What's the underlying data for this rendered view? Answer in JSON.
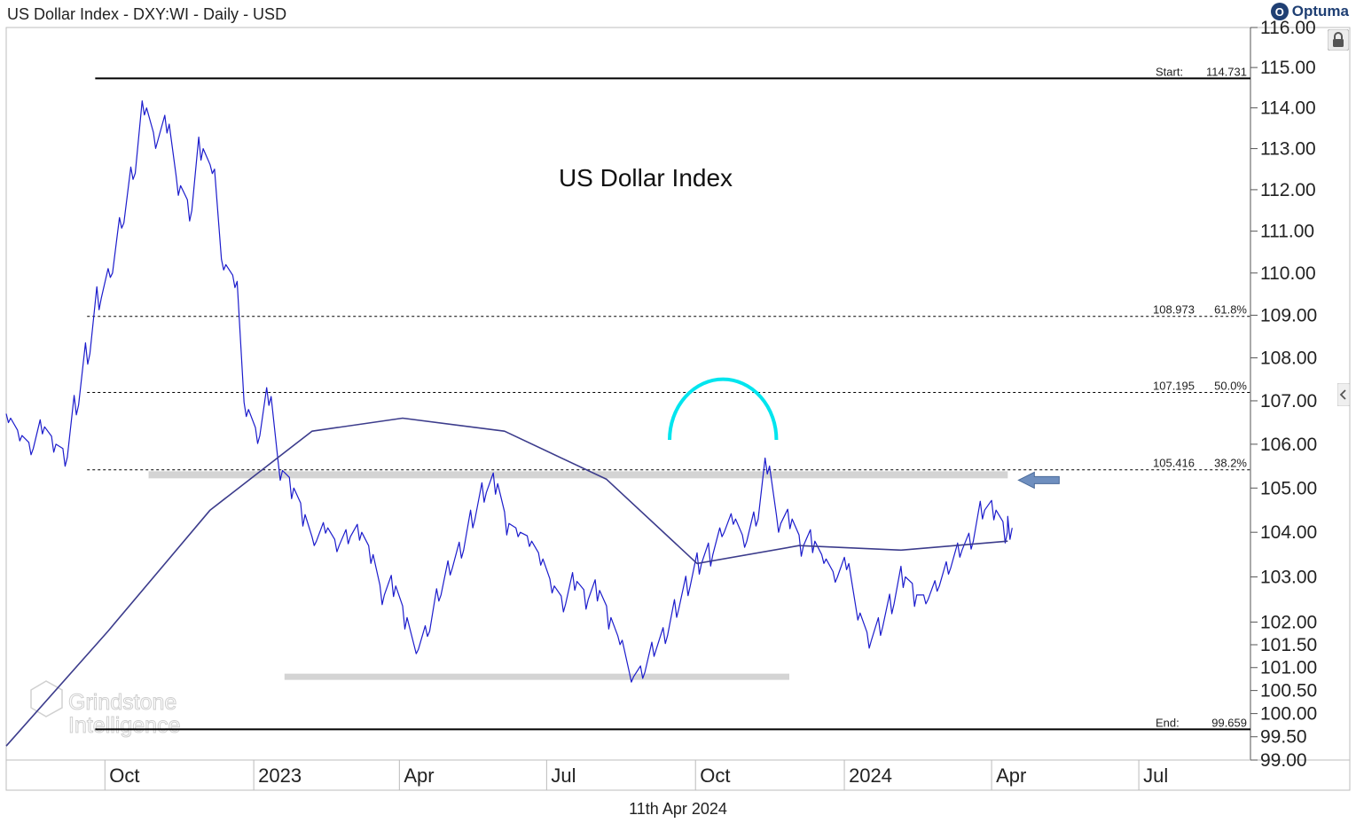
{
  "header": {
    "title": "US Dollar Index - DXY:WI - Daily - USD",
    "logo_text": "Optuma"
  },
  "footer": {
    "date": "11th Apr 2024"
  },
  "watermark": {
    "line1": "Grindstone",
    "line2": "Intelligence"
  },
  "colors": {
    "price": "#1c1ccc",
    "ma": "#3c3c8c",
    "arc": "#00e5ee",
    "support": "#d4d4d4",
    "arrow": "#6f8fbf",
    "level": "#000000"
  },
  "icons": {
    "lock": "lock-icon",
    "side_toggle": "chevron-left-icon",
    "logo": "optuma-logo-icon"
  },
  "chart_data": {
    "type": "line",
    "title": "US Dollar Index",
    "xlabel": "",
    "ylabel": "",
    "ylim": [
      99.0,
      116.0
    ],
    "y_scale": "log",
    "yticks": [
      "116.00",
      "115.00",
      "114.00",
      "113.00",
      "112.00",
      "111.00",
      "110.00",
      "109.00",
      "108.00",
      "107.00",
      "106.00",
      "105.00",
      "104.00",
      "103.00",
      "102.00",
      "101.50",
      "101.00",
      "100.50",
      "100.00",
      "99.50",
      "99.00"
    ],
    "xticks": [
      "Oct",
      "2023",
      "Apr",
      "Jul",
      "Oct",
      "2024",
      "Apr",
      "Jul"
    ],
    "grid": false,
    "levels": [
      {
        "label": "Start:",
        "value": 114.731,
        "value_text": "114.731",
        "style": "solid"
      },
      {
        "label": "108.973",
        "value": 108.973,
        "pct_text": "61.8%",
        "style": "dashed"
      },
      {
        "label": "107.195",
        "value": 107.195,
        "pct_text": "50.0%",
        "style": "dashed"
      },
      {
        "label": "105.416",
        "value": 105.416,
        "pct_text": "38.2%",
        "style": "dashed"
      },
      {
        "label": "End:",
        "value": 99.659,
        "value_text": "99.659",
        "style": "solid"
      }
    ],
    "series": [
      {
        "type": "line",
        "x": [
          "2022-08-01",
          "2022-08-08",
          "2022-08-15",
          "2022-08-22",
          "2022-08-29",
          "2022-09-05",
          "2022-09-12",
          "2022-09-19",
          "2022-09-26",
          "2022-10-03",
          "2022-10-10",
          "2022-10-17",
          "2022-10-24",
          "2022-10-31",
          "2022-11-07",
          "2022-11-14",
          "2022-11-21",
          "2022-11-28",
          "2022-12-05",
          "2022-12-12",
          "2022-12-19",
          "2022-12-26",
          "2023-01-02",
          "2023-01-09",
          "2023-01-16",
          "2023-01-23",
          "2023-01-30",
          "2023-02-06",
          "2023-02-13",
          "2023-02-20",
          "2023-02-27",
          "2023-03-06",
          "2023-03-13",
          "2023-03-20",
          "2023-03-27",
          "2023-04-03",
          "2023-04-10",
          "2023-04-17",
          "2023-04-24",
          "2023-05-01",
          "2023-05-08",
          "2023-05-15",
          "2023-05-22",
          "2023-05-29",
          "2023-06-05",
          "2023-06-12",
          "2023-06-19",
          "2023-06-26",
          "2023-07-03",
          "2023-07-10",
          "2023-07-17",
          "2023-07-24",
          "2023-07-31",
          "2023-08-07",
          "2023-08-14",
          "2023-08-21",
          "2023-08-28",
          "2023-09-04",
          "2023-09-11",
          "2023-09-18",
          "2023-09-25",
          "2023-10-02",
          "2023-10-09",
          "2023-10-16",
          "2023-10-23",
          "2023-10-30",
          "2023-11-06",
          "2023-11-13",
          "2023-11-20",
          "2023-11-27",
          "2023-12-04",
          "2023-12-11",
          "2023-12-18",
          "2023-12-25",
          "2024-01-01",
          "2024-01-08",
          "2024-01-15",
          "2024-01-22",
          "2024-01-29",
          "2024-02-05",
          "2024-02-12",
          "2024-02-19",
          "2024-02-26",
          "2024-03-04",
          "2024-03-11",
          "2024-03-18",
          "2024-03-25",
          "2024-04-01",
          "2024-04-08",
          "2024-04-11"
        ],
        "values": [
          106.6,
          106.2,
          105.9,
          106.4,
          106.0,
          105.7,
          106.9,
          108.1,
          109.4,
          110.0,
          111.2,
          112.4,
          114.0,
          113.2,
          113.6,
          112.1,
          111.5,
          113.0,
          112.5,
          110.2,
          109.8,
          106.8,
          106.2,
          107.1,
          105.4,
          105.0,
          104.4,
          103.8,
          104.1,
          103.7,
          103.9,
          104.0,
          103.5,
          102.6,
          102.8,
          102.1,
          101.4,
          101.8,
          102.6,
          103.2,
          103.6,
          104.3,
          104.9,
          105.1,
          104.2,
          104.0,
          103.8,
          103.4,
          102.8,
          102.4,
          102.9,
          102.5,
          102.7,
          102.1,
          101.6,
          100.8,
          100.9,
          101.4,
          101.7,
          102.3,
          102.8,
          103.3,
          103.5,
          104.0,
          104.3,
          103.8,
          104.3,
          105.5,
          104.2,
          104.3,
          103.7,
          103.8,
          103.4,
          103.0,
          103.3,
          102.2,
          101.6,
          101.9,
          102.4,
          103.0,
          102.6,
          102.5,
          102.8,
          103.2,
          103.6,
          103.8,
          104.5,
          104.5,
          104.0,
          104.1
        ],
        "name": ""
      },
      {
        "type": "line",
        "x": [
          "2022-08-01",
          "2022-10-03",
          "2022-12-05",
          "2023-02-06",
          "2023-04-03",
          "2023-06-05",
          "2023-08-07",
          "2023-10-02",
          "2023-12-04",
          "2024-02-05",
          "2024-04-11"
        ],
        "values": [
          99.3,
          101.8,
          104.5,
          106.3,
          106.6,
          106.3,
          105.2,
          103.3,
          103.7,
          103.6,
          103.8
        ],
        "name": ""
      }
    ],
    "annotations": [
      {
        "type": "support_band",
        "from": "2023-01-20",
        "to": "2023-11-28",
        "value": 100.8
      },
      {
        "type": "resistance_band",
        "from": "2022-10-28",
        "to": "2024-04-11",
        "value": 105.3
      },
      {
        "type": "arc",
        "from": "2023-09-15",
        "to": "2023-11-20",
        "base": 106.1,
        "peak": 107.5
      },
      {
        "type": "arrow",
        "at": "2024-04-11",
        "value": 105.3,
        "direction": "left"
      }
    ]
  }
}
